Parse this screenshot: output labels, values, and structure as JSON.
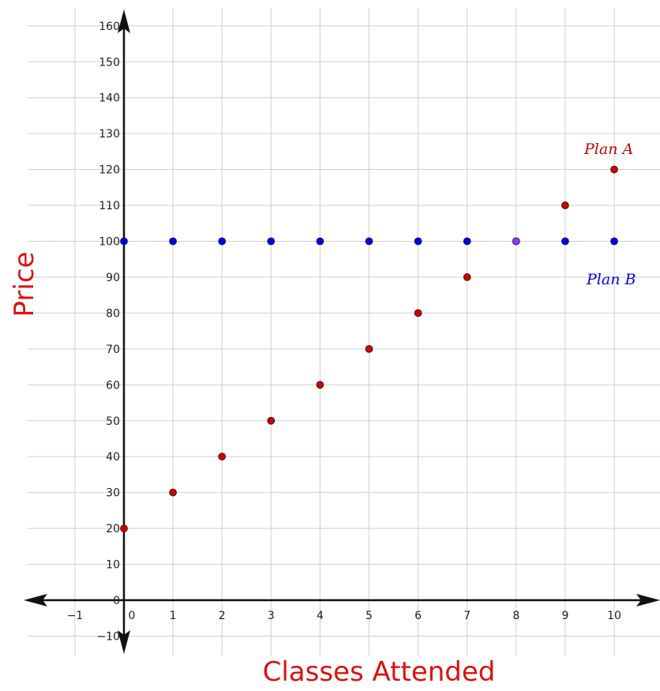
{
  "chart_data": {
    "type": "scatter",
    "xlabel": "Classes Attended",
    "ylabel": "Price",
    "xlim": [
      -2,
      11
    ],
    "ylim": [
      -12,
      165
    ],
    "x_ticks": [
      -1,
      0,
      1,
      2,
      3,
      4,
      5,
      6,
      7,
      8,
      9,
      10
    ],
    "y_ticks": [
      -10,
      0,
      10,
      20,
      30,
      40,
      50,
      60,
      70,
      80,
      90,
      100,
      110,
      120,
      130,
      140,
      150,
      160
    ],
    "grid": true,
    "series": [
      {
        "name": "Plan A",
        "color": "#cc0000",
        "x": [
          0,
          1,
          2,
          3,
          4,
          5,
          6,
          7,
          8,
          9,
          10
        ],
        "y": [
          20,
          30,
          40,
          50,
          60,
          70,
          80,
          90,
          100,
          110,
          120
        ]
      },
      {
        "name": "Plan B",
        "color": "#0000ee",
        "x": [
          0,
          1,
          2,
          3,
          4,
          5,
          6,
          7,
          8,
          9,
          10
        ],
        "y": [
          100,
          100,
          100,
          100,
          100,
          100,
          100,
          100,
          100,
          100,
          100
        ]
      }
    ],
    "intersection": {
      "x": 8,
      "y": 100,
      "color": "#9933ff"
    },
    "label_color": "#dd1111"
  }
}
